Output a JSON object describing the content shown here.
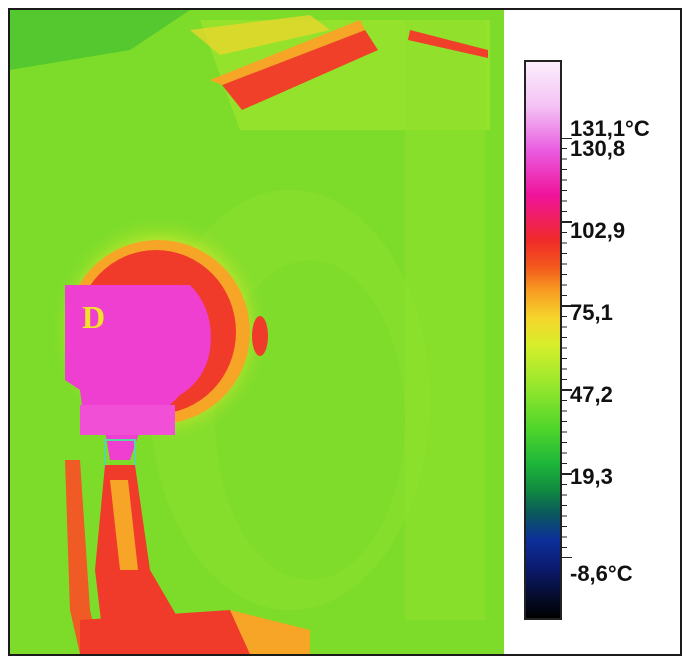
{
  "thermal_image": {
    "marker_label": "D"
  },
  "scale": {
    "max_label": "131,1°C",
    "labels": [
      "130,8",
      "102,9",
      "75,1",
      "47,2",
      "19,3"
    ],
    "min_label": "-8,6°C"
  },
  "colors": {
    "background_green": "#7ddc2a",
    "hot_magenta": "#ee3fd0",
    "warm_red": "#f03a2a",
    "warm_orange": "#f7a526",
    "scale_border": "#222222"
  }
}
